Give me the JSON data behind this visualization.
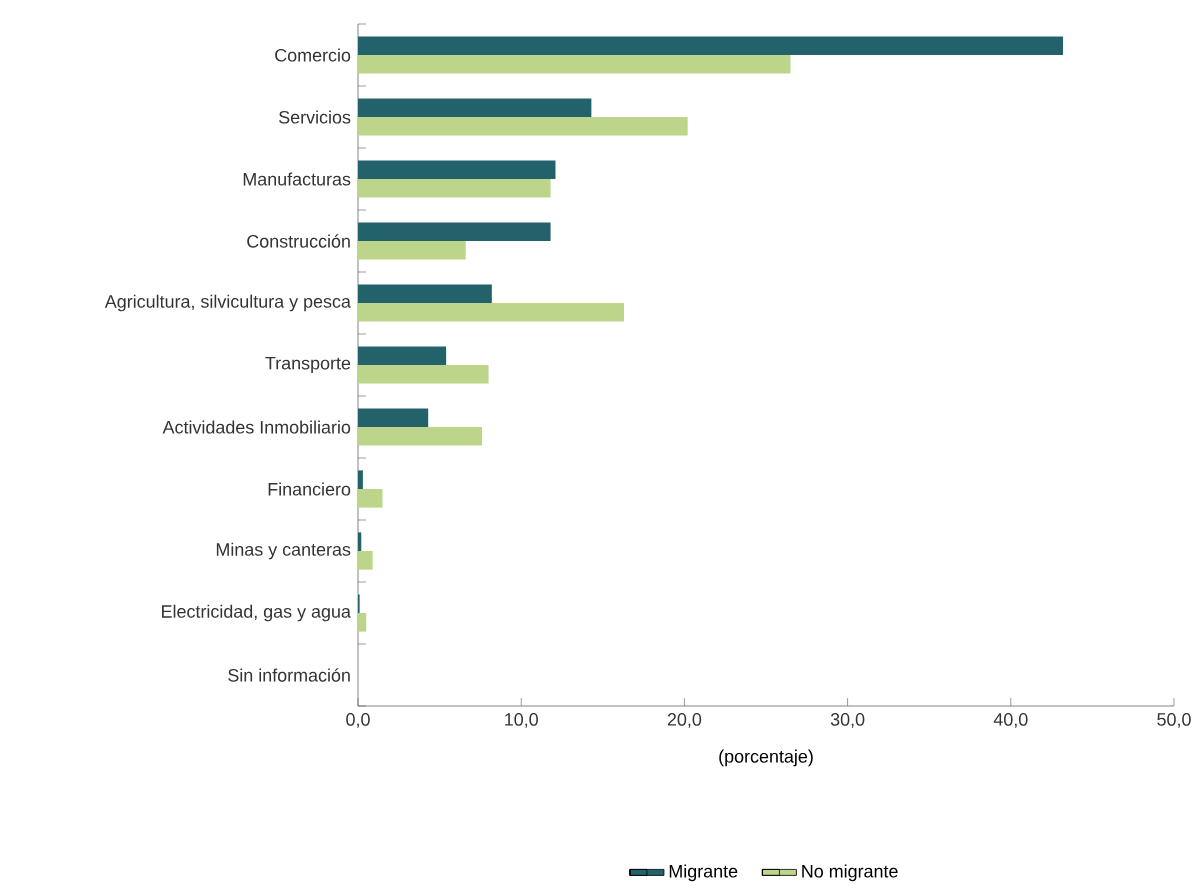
{
  "chart_data": {
    "type": "bar",
    "orientation": "horizontal",
    "categories": [
      "Comercio",
      "Servicios",
      "Manufacturas",
      "Construcción",
      "Agricultura, silvicultura y pesca",
      "Transporte",
      "Actividades Inmobiliario",
      "Financiero",
      "Minas y canteras",
      "Electricidad, gas y agua",
      "Sin información"
    ],
    "series": [
      {
        "name": "Migrante",
        "color": "#23626a",
        "values": [
          43.2,
          14.3,
          12.1,
          11.8,
          8.2,
          5.4,
          4.3,
          0.3,
          0.2,
          0.1,
          0
        ]
      },
      {
        "name": "No migrante",
        "color": "#bcd58a",
        "values": [
          26.5,
          20.2,
          11.8,
          6.6,
          16.3,
          8.0,
          7.6,
          1.5,
          0.9,
          0.5,
          0
        ]
      }
    ],
    "xlabel": "(porcentaje)",
    "xlim": [
      0,
      50
    ],
    "xticks": [
      {
        "value": 0,
        "label": "0,0"
      },
      {
        "value": 10,
        "label": "10,0"
      },
      {
        "value": 20,
        "label": "20,0"
      },
      {
        "value": 30,
        "label": "30,0"
      },
      {
        "value": 40,
        "label": "40,0"
      },
      {
        "value": 50,
        "label": "50,0"
      }
    ],
    "grid": false,
    "legend": "bottom"
  }
}
